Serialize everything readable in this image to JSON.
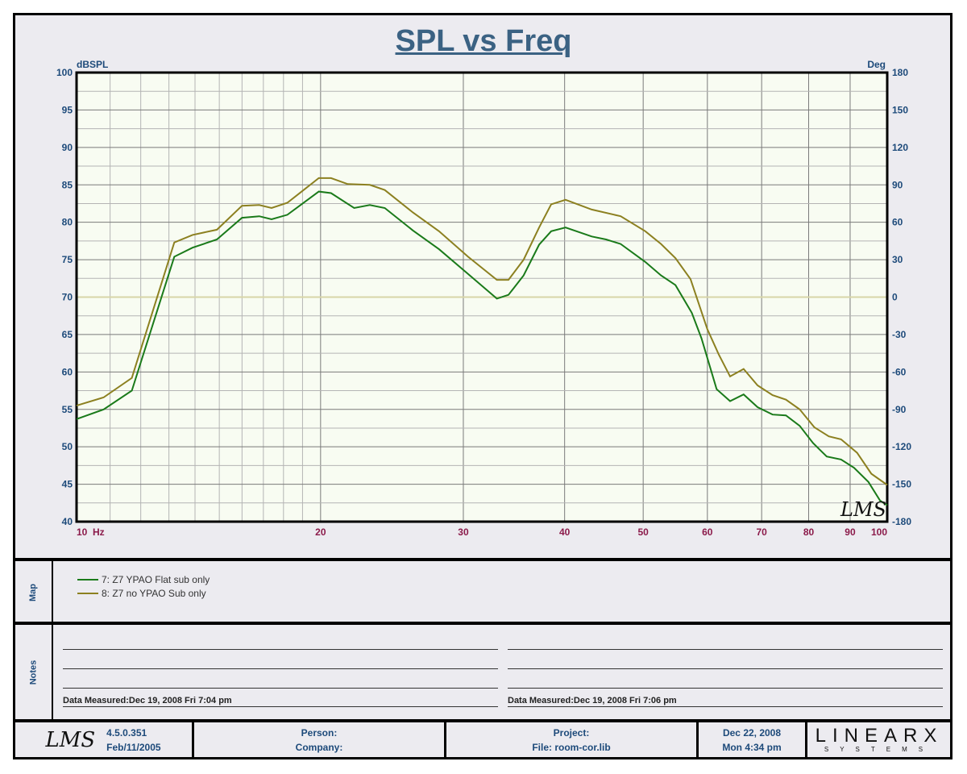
{
  "title": "SPL vs Freq",
  "chart_data": {
    "type": "line",
    "title": "SPL vs Freq",
    "xlabel": "Hz",
    "ylabel": "dBSPL",
    "y2label": "Deg",
    "xscale": "log",
    "xlim": [
      10,
      100
    ],
    "ylim": [
      40,
      100
    ],
    "y2lim": [
      -180,
      180
    ],
    "x_ticks": [
      {
        "v": 10,
        "l": "10"
      },
      {
        "v": 20,
        "l": "20"
      },
      {
        "v": 30,
        "l": "30"
      },
      {
        "v": 40,
        "l": "40"
      },
      {
        "v": 50,
        "l": "50"
      },
      {
        "v": 60,
        "l": "60"
      },
      {
        "v": 70,
        "l": "70"
      },
      {
        "v": 80,
        "l": "80"
      },
      {
        "v": 90,
        "l": "90"
      },
      {
        "v": 100,
        "l": "100"
      }
    ],
    "y_ticks": [
      100,
      95,
      90,
      85,
      80,
      75,
      70,
      65,
      60,
      55,
      50,
      45,
      40
    ],
    "y2_ticks": [
      180,
      150,
      120,
      90,
      60,
      30,
      0,
      -30,
      -60,
      -90,
      -120,
      -150,
      -180
    ],
    "grid": true,
    "series": [
      {
        "name": "7: Z7 YPAO Flat sub only",
        "color": "#1a7a1a",
        "x": [
          10,
          10.8,
          11.7,
          13.2,
          13.9,
          14.9,
          16,
          16.8,
          17.4,
          18.2,
          19.9,
          20.6,
          22,
          23,
          24,
          26,
          28,
          30.4,
          33,
          34.1,
          35.6,
          37.2,
          38.5,
          40.1,
          43.2,
          45,
          46.9,
          50.3,
          52.6,
          54.8,
          57.4,
          59,
          61.6,
          64,
          66.5,
          69.2,
          72.2,
          75,
          78,
          81,
          84.2,
          87.7,
          91,
          94.8,
          98,
          100
        ],
        "y": [
          53.7,
          55.0,
          57.5,
          75.4,
          76.6,
          77.7,
          80.6,
          80.8,
          80.4,
          81.0,
          84.1,
          83.9,
          81.9,
          82.3,
          81.9,
          78.9,
          76.4,
          73.1,
          69.8,
          70.3,
          72.9,
          77.0,
          78.8,
          79.3,
          78.1,
          77.7,
          77.1,
          74.7,
          72.9,
          71.6,
          67.9,
          64.5,
          57.7,
          56.1,
          57.0,
          55.3,
          54.3,
          54.2,
          52.8,
          50.5,
          48.7,
          48.3,
          47.2,
          45.3,
          42.8,
          42.2
        ]
      },
      {
        "name": "8: Z7 no YPAO Sub only",
        "color": "#8c8020",
        "x": [
          10,
          10.8,
          11.7,
          13.2,
          13.9,
          14.9,
          16,
          16.8,
          17.4,
          18.2,
          19.9,
          20.6,
          21.6,
          23,
          24,
          26,
          28,
          30.4,
          33,
          34.1,
          35.6,
          37.2,
          38.5,
          40.1,
          43.2,
          46.9,
          50.3,
          52.6,
          54.8,
          57.2,
          60,
          62,
          64,
          66.5,
          69.2,
          72.2,
          75,
          78,
          81.3,
          84.7,
          87.7,
          91.8,
          95.6,
          100
        ],
        "y": [
          55.5,
          56.6,
          59.2,
          77.3,
          78.3,
          79.0,
          82.2,
          82.3,
          81.9,
          82.6,
          85.9,
          85.9,
          85.1,
          85.0,
          84.3,
          81.3,
          78.8,
          75.4,
          72.3,
          72.3,
          75.0,
          79.3,
          82.4,
          83.0,
          81.7,
          80.8,
          78.8,
          77.1,
          75.2,
          72.4,
          65.7,
          62.3,
          59.4,
          60.4,
          58.2,
          56.9,
          56.3,
          55.0,
          52.6,
          51.4,
          51.0,
          49.2,
          46.4,
          44.9
        ]
      }
    ],
    "reference_line": {
      "y": 70,
      "y2": 0,
      "color": "#d8d6a8"
    },
    "legend_placement": "bottom-panel"
  },
  "watermark": "LMS",
  "map": {
    "label": "Map"
  },
  "notes": {
    "label": "Notes",
    "left": {
      "label": "Data Measured:",
      "value": "Dec 19, 2008  Fri  7:04 pm"
    },
    "right": {
      "label": "Data Measured:",
      "value": "Dec 19, 2008  Fri  7:06 pm"
    }
  },
  "footer": {
    "logo": "LMS",
    "version": "4.5.0.351",
    "version_date": "Feb/11/2005",
    "person": "Person:",
    "company": "Company:",
    "project": "Project:",
    "file": "File: room-cor.lib",
    "date": "Dec 22, 2008",
    "time": "Mon  4:34 pm",
    "brand": "LINEARX",
    "brand_sub": "SYSTEMS"
  }
}
